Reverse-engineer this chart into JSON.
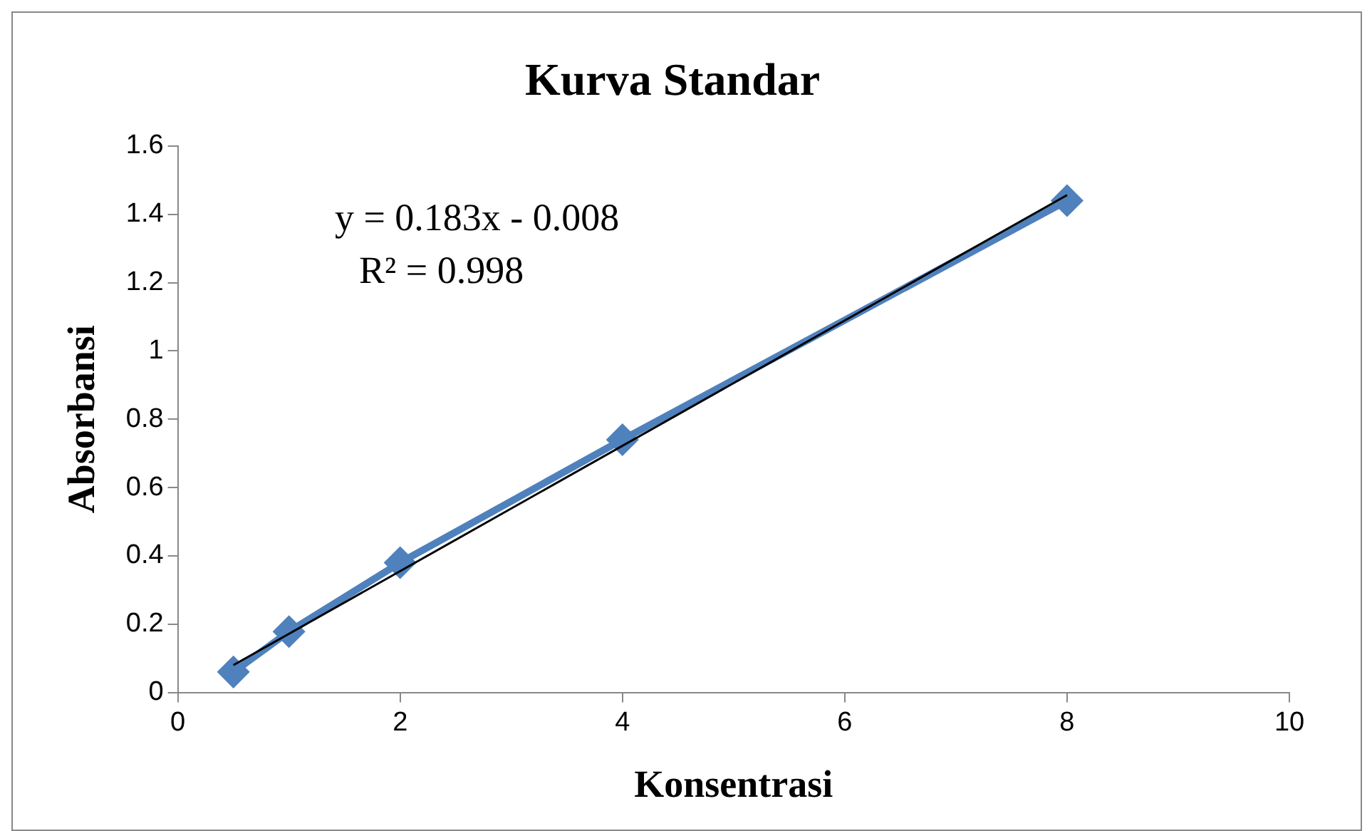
{
  "chart_data": {
    "type": "line",
    "title": "Kurva Standar",
    "xlabel": "Konsentrasi",
    "ylabel": "Absorbansi",
    "x": [
      0.5,
      1,
      2,
      4,
      8
    ],
    "series": [
      {
        "color": "#4f81bd",
        "marker": "diamond",
        "values": [
          0.06,
          0.178,
          0.38,
          0.74,
          1.44
        ]
      },
      {
        "color": "#000000",
        "marker": "none",
        "x": [
          0.5,
          8
        ],
        "values": [
          0.08,
          1.456
        ]
      }
    ],
    "xlim": [
      0,
      10
    ],
    "xticks": [
      0,
      2,
      4,
      6,
      8,
      10
    ],
    "ylim": [
      0,
      1.6
    ],
    "yticks": [
      0,
      0.2,
      0.4,
      0.6,
      0.8,
      1,
      1.2,
      1.4,
      1.6
    ],
    "grid": false,
    "legend": false,
    "annotations": [
      "y = 0.183x - 0.008",
      "R² = 0.998"
    ]
  }
}
